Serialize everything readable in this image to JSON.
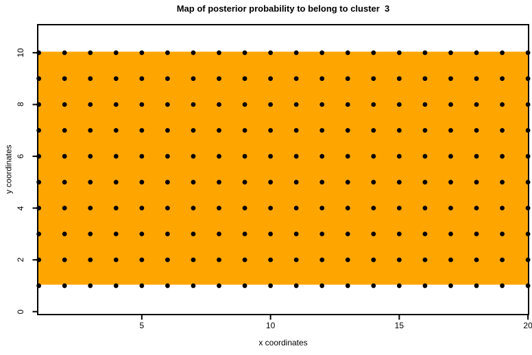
{
  "chart_data": {
    "type": "scatter",
    "title": "Map of posterior probability to belong to cluster  3",
    "xlabel": "x coordinates",
    "ylabel": "y coordinates",
    "x_ticks": [
      5,
      10,
      15,
      20
    ],
    "y_ticks": [
      0,
      2,
      4,
      6,
      8,
      10
    ],
    "xlim": [
      0.93,
      20.05
    ],
    "ylim": [
      -0.14,
      11.11
    ],
    "grid": false,
    "legend": "none",
    "points": {
      "x_values": [
        1,
        2,
        3,
        4,
        5,
        6,
        7,
        8,
        9,
        10,
        11,
        12,
        13,
        14,
        15,
        16,
        17,
        18,
        19,
        20
      ],
      "y_values": [
        1,
        2,
        3,
        4,
        5,
        6,
        7,
        8,
        9,
        10
      ],
      "description": "black filled dot at every (x, y) lattice point, 20 columns by 10 rows",
      "marker": "filled-circle",
      "marker_color": "#000000"
    },
    "shaded_region": {
      "x_from": 0.93,
      "x_to": 20.05,
      "y_from": 1,
      "y_to": 10,
      "fill_color": "#FFA500",
      "meaning": "posterior probability map region for cluster 3"
    }
  },
  "colors": {
    "background": "#FFFFFF",
    "region_fill": "#FFA500",
    "points": "#000000",
    "axis": "#000000",
    "text": "#000000"
  }
}
